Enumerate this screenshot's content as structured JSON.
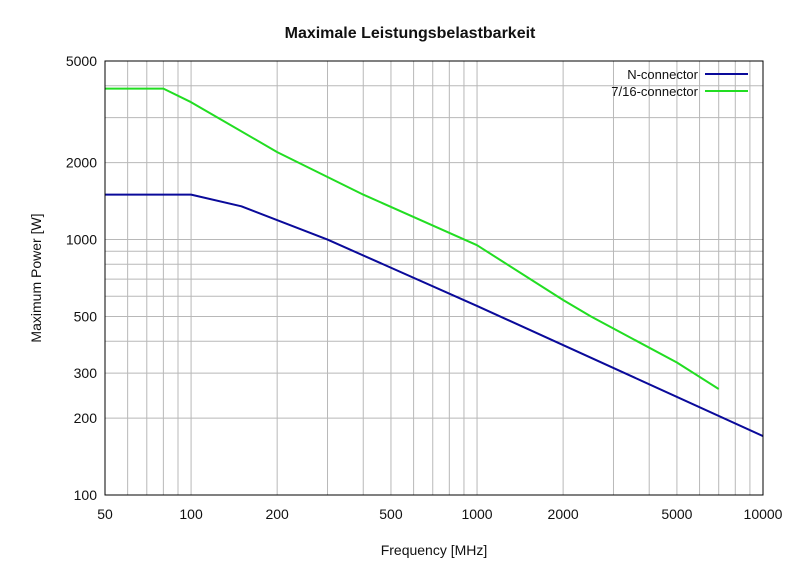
{
  "chart_data": {
    "type": "line",
    "title": "Maximale Leistungsbelastbarkeit",
    "xlabel": "Frequency [MHz]",
    "ylabel": "Maximum Power [W]",
    "x_scale": "log",
    "y_scale": "log",
    "xlim": [
      50,
      10000
    ],
    "ylim": [
      100,
      5000
    ],
    "x_ticks": [
      50,
      100,
      200,
      500,
      1000,
      2000,
      5000,
      10000
    ],
    "x_tick_labels": [
      "50",
      "100",
      "200",
      "500",
      "1000",
      "2000",
      "5000",
      "10000"
    ],
    "y_ticks": [
      100,
      200,
      300,
      500,
      1000,
      2000,
      5000
    ],
    "y_tick_labels": [
      "100",
      "200",
      "300",
      "500",
      "1000",
      "2000",
      "5000"
    ],
    "grid": true,
    "legend_position": "top-right",
    "series": [
      {
        "name": "N-connector",
        "color": "#0a0a9a",
        "x": [
          50,
          100,
          150,
          300,
          1000,
          10000
        ],
        "y": [
          1500,
          1500,
          1350,
          1000,
          550,
          170
        ]
      },
      {
        "name": "7/16-connector",
        "color": "#22dd22",
        "x": [
          50,
          80,
          100,
          200,
          400,
          1000,
          2000,
          2500,
          5000,
          7000
        ],
        "y": [
          3900,
          3900,
          3450,
          2200,
          1500,
          950,
          580,
          500,
          330,
          260
        ]
      }
    ]
  }
}
